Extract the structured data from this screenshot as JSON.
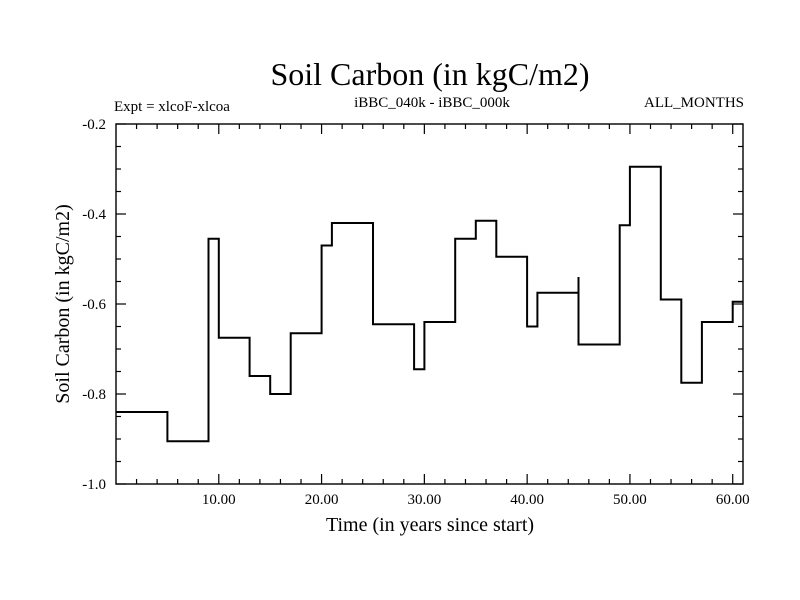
{
  "chart_data": {
    "type": "line",
    "title": "Soil Carbon (in kgC/m2)",
    "subtitle_left": "Expt = xlcoF-xlcoa",
    "subtitle_center": "iBBC_040k - iBBC_000k",
    "subtitle_right": "ALL_MONTHS",
    "xlabel": "Time (in years since start)",
    "ylabel": "Soil Carbon (in kgC/m2)",
    "xlim": [
      0,
      61
    ],
    "ylim": [
      -1.0,
      -0.2
    ],
    "x_ticks": [
      10,
      20,
      30,
      40,
      50,
      60
    ],
    "x_tick_labels": [
      "10.00",
      "20.00",
      "30.00",
      "40.00",
      "50.00",
      "60.00"
    ],
    "y_ticks": [
      -1.0,
      -0.8,
      -0.6,
      -0.4,
      -0.2
    ],
    "y_tick_labels": [
      "-1.0",
      "-0.8",
      "-0.6",
      "-0.4",
      "-0.2"
    ],
    "series": [
      {
        "name": "Soil Carbon",
        "x": [
          0,
          5,
          5,
          9,
          9,
          9.5,
          9.5,
          10,
          10,
          13,
          13,
          15,
          15,
          17,
          17,
          20,
          20,
          21,
          21,
          25,
          25,
          29,
          29,
          30,
          30,
          33,
          33,
          35,
          35,
          37,
          37,
          40,
          40,
          41,
          41,
          45,
          45,
          45,
          45,
          49,
          49,
          50,
          50,
          53,
          53,
          55,
          55,
          57,
          57,
          60,
          60,
          61
        ],
        "y": [
          -0.84,
          -0.84,
          -0.905,
          -0.905,
          -0.455,
          -0.455,
          -0.455,
          -0.455,
          -0.675,
          -0.675,
          -0.76,
          -0.76,
          -0.8,
          -0.8,
          -0.665,
          -0.665,
          -0.47,
          -0.47,
          -0.42,
          -0.42,
          -0.645,
          -0.645,
          -0.745,
          -0.745,
          -0.64,
          -0.64,
          -0.455,
          -0.455,
          -0.415,
          -0.415,
          -0.495,
          -0.495,
          -0.65,
          -0.65,
          -0.575,
          -0.575,
          -0.54,
          -0.69,
          -0.69,
          -0.69,
          -0.425,
          -0.425,
          -0.295,
          -0.295,
          -0.59,
          -0.59,
          -0.775,
          -0.775,
          -0.64,
          -0.64,
          -0.595,
          -0.595
        ]
      }
    ]
  }
}
